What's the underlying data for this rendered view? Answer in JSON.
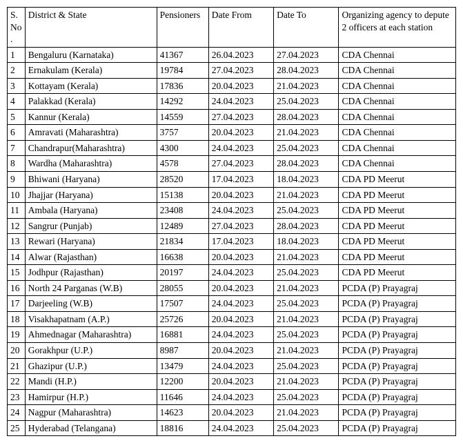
{
  "columns": {
    "sno": "S.No.",
    "district": "District & State",
    "pensioners": "Pensioners",
    "date_from": "Date From",
    "date_to": "Date To",
    "agency": "Organizing agency to depute 2 officers at each station"
  },
  "rows": [
    {
      "sno": "1",
      "district": "Bengaluru (Karnataka)",
      "pensioners": "41367",
      "from": "26.04.2023",
      "to": "27.04.2023",
      "agency": "CDA Chennai"
    },
    {
      "sno": "2",
      "district": "Ernakulam (Kerala)",
      "pensioners": "19784",
      "from": "27.04.2023",
      "to": "28.04.2023",
      "agency": "CDA Chennai"
    },
    {
      "sno": "3",
      "district": "Kottayam (Kerala)",
      "pensioners": "17836",
      "from": "20.04.2023",
      "to": "21.04.2023",
      "agency": "CDA Chennai"
    },
    {
      "sno": "4",
      "district": "Palakkad (Kerala)",
      "pensioners": "14292",
      "from": "24.04.2023",
      "to": "25.04.2023",
      "agency": "CDA Chennai"
    },
    {
      "sno": "5",
      "district": "Kannur (Kerala)",
      "pensioners": "14559",
      "from": "27.04.2023",
      "to": "28.04.2023",
      "agency": "CDA Chennai"
    },
    {
      "sno": "6",
      "district": "Amravati (Maharashtra)",
      "pensioners": "3757",
      "from": "20.04.2023",
      "to": "21.04.2023",
      "agency": "CDA Chennai"
    },
    {
      "sno": "7",
      "district": "Chandrapur(Maharashtra)",
      "pensioners": "4300",
      "from": "24.04.2023",
      "to": "25.04.2023",
      "agency": "CDA Chennai"
    },
    {
      "sno": "8",
      "district": "Wardha (Maharashtra)",
      "pensioners": "4578",
      "from": "27.04.2023",
      "to": "28.04.2023",
      "agency": "CDA Chennai"
    },
    {
      "sno": "9",
      "district": "Bhiwani (Haryana)",
      "pensioners": "28520",
      "from": "17.04.2023",
      "to": "18.04.2023",
      "agency": "CDA PD Meerut"
    },
    {
      "sno": "10",
      "district": "Jhajjar (Haryana)",
      "pensioners": "15138",
      "from": "20.04.2023",
      "to": "21.04.2023",
      "agency": "CDA PD Meerut"
    },
    {
      "sno": "11",
      "district": "Ambala (Haryana)",
      "pensioners": "23408",
      "from": "24.04.2023",
      "to": "25.04.2023",
      "agency": "CDA PD Meerut"
    },
    {
      "sno": "12",
      "district": "Sangrur (Punjab)",
      "pensioners": "12489",
      "from": "27.04.2023",
      "to": "28.04.2023",
      "agency": "CDA PD Meerut"
    },
    {
      "sno": "13",
      "district": "Rewari (Haryana)",
      "pensioners": "21834",
      "from": "17.04.2023",
      "to": "18.04.2023",
      "agency": "CDA PD Meerut"
    },
    {
      "sno": "14",
      "district": "Alwar (Rajasthan)",
      "pensioners": "16638",
      "from": "20.04.2023",
      "to": "21.04.2023",
      "agency": "CDA PD Meerut"
    },
    {
      "sno": "15",
      "district": "Jodhpur (Rajasthan)",
      "pensioners": "20197",
      "from": "24.04.2023",
      "to": "25.04.2023",
      "agency": "CDA PD Meerut"
    },
    {
      "sno": "16",
      "district": "North 24 Parganas (W.B)",
      "pensioners": "28055",
      "from": "20.04.2023",
      "to": "21.04.2023",
      "agency": "PCDA (P) Prayagraj"
    },
    {
      "sno": "17",
      "district": "Darjeeling (W.B)",
      "pensioners": "17507",
      "from": "24.04.2023",
      "to": "25.04.2023",
      "agency": "PCDA (P) Prayagraj"
    },
    {
      "sno": "18",
      "district": "Visakhapatnam (A.P.)",
      "pensioners": "25726",
      "from": "20.04.2023",
      "to": "21.04.2023",
      "agency": "PCDA (P) Prayagraj"
    },
    {
      "sno": "19",
      "district": "Ahmednagar (Maharashtra)",
      "pensioners": "16881",
      "from": "24.04.2023",
      "to": "25.04.2023",
      "agency": "PCDA (P) Prayagraj"
    },
    {
      "sno": "20",
      "district": "Gorakhpur (U.P.)",
      "pensioners": "8987",
      "from": "20.04.2023",
      "to": "21.04.2023",
      "agency": "PCDA (P) Prayagraj"
    },
    {
      "sno": "21",
      "district": "Ghazipur (U.P.)",
      "pensioners": "13479",
      "from": "24.04.2023",
      "to": "25.04.2023",
      "agency": "PCDA (P) Prayagraj"
    },
    {
      "sno": "22",
      "district": "Mandi (H.P.)",
      "pensioners": "12200",
      "from": "20.04.2023",
      "to": "21.04.2023",
      "agency": "PCDA (P) Prayagraj"
    },
    {
      "sno": "23",
      "district": "Hamirpur (H.P.)",
      "pensioners": "11646",
      "from": "24.04.2023",
      "to": "25.04.2023",
      "agency": "PCDA (P) Prayagraj"
    },
    {
      "sno": "24",
      "district": "Nagpur (Maharashtra)",
      "pensioners": "14623",
      "from": "20.04.2023",
      "to": "21.04.2023",
      "agency": "PCDA (P) Prayagraj"
    },
    {
      "sno": "25",
      "district": "Hyderabad (Telangana)",
      "pensioners": "18816",
      "from": "24.04.2023",
      "to": "25.04.2023",
      "agency": "PCDA (P) Prayagraj"
    }
  ]
}
